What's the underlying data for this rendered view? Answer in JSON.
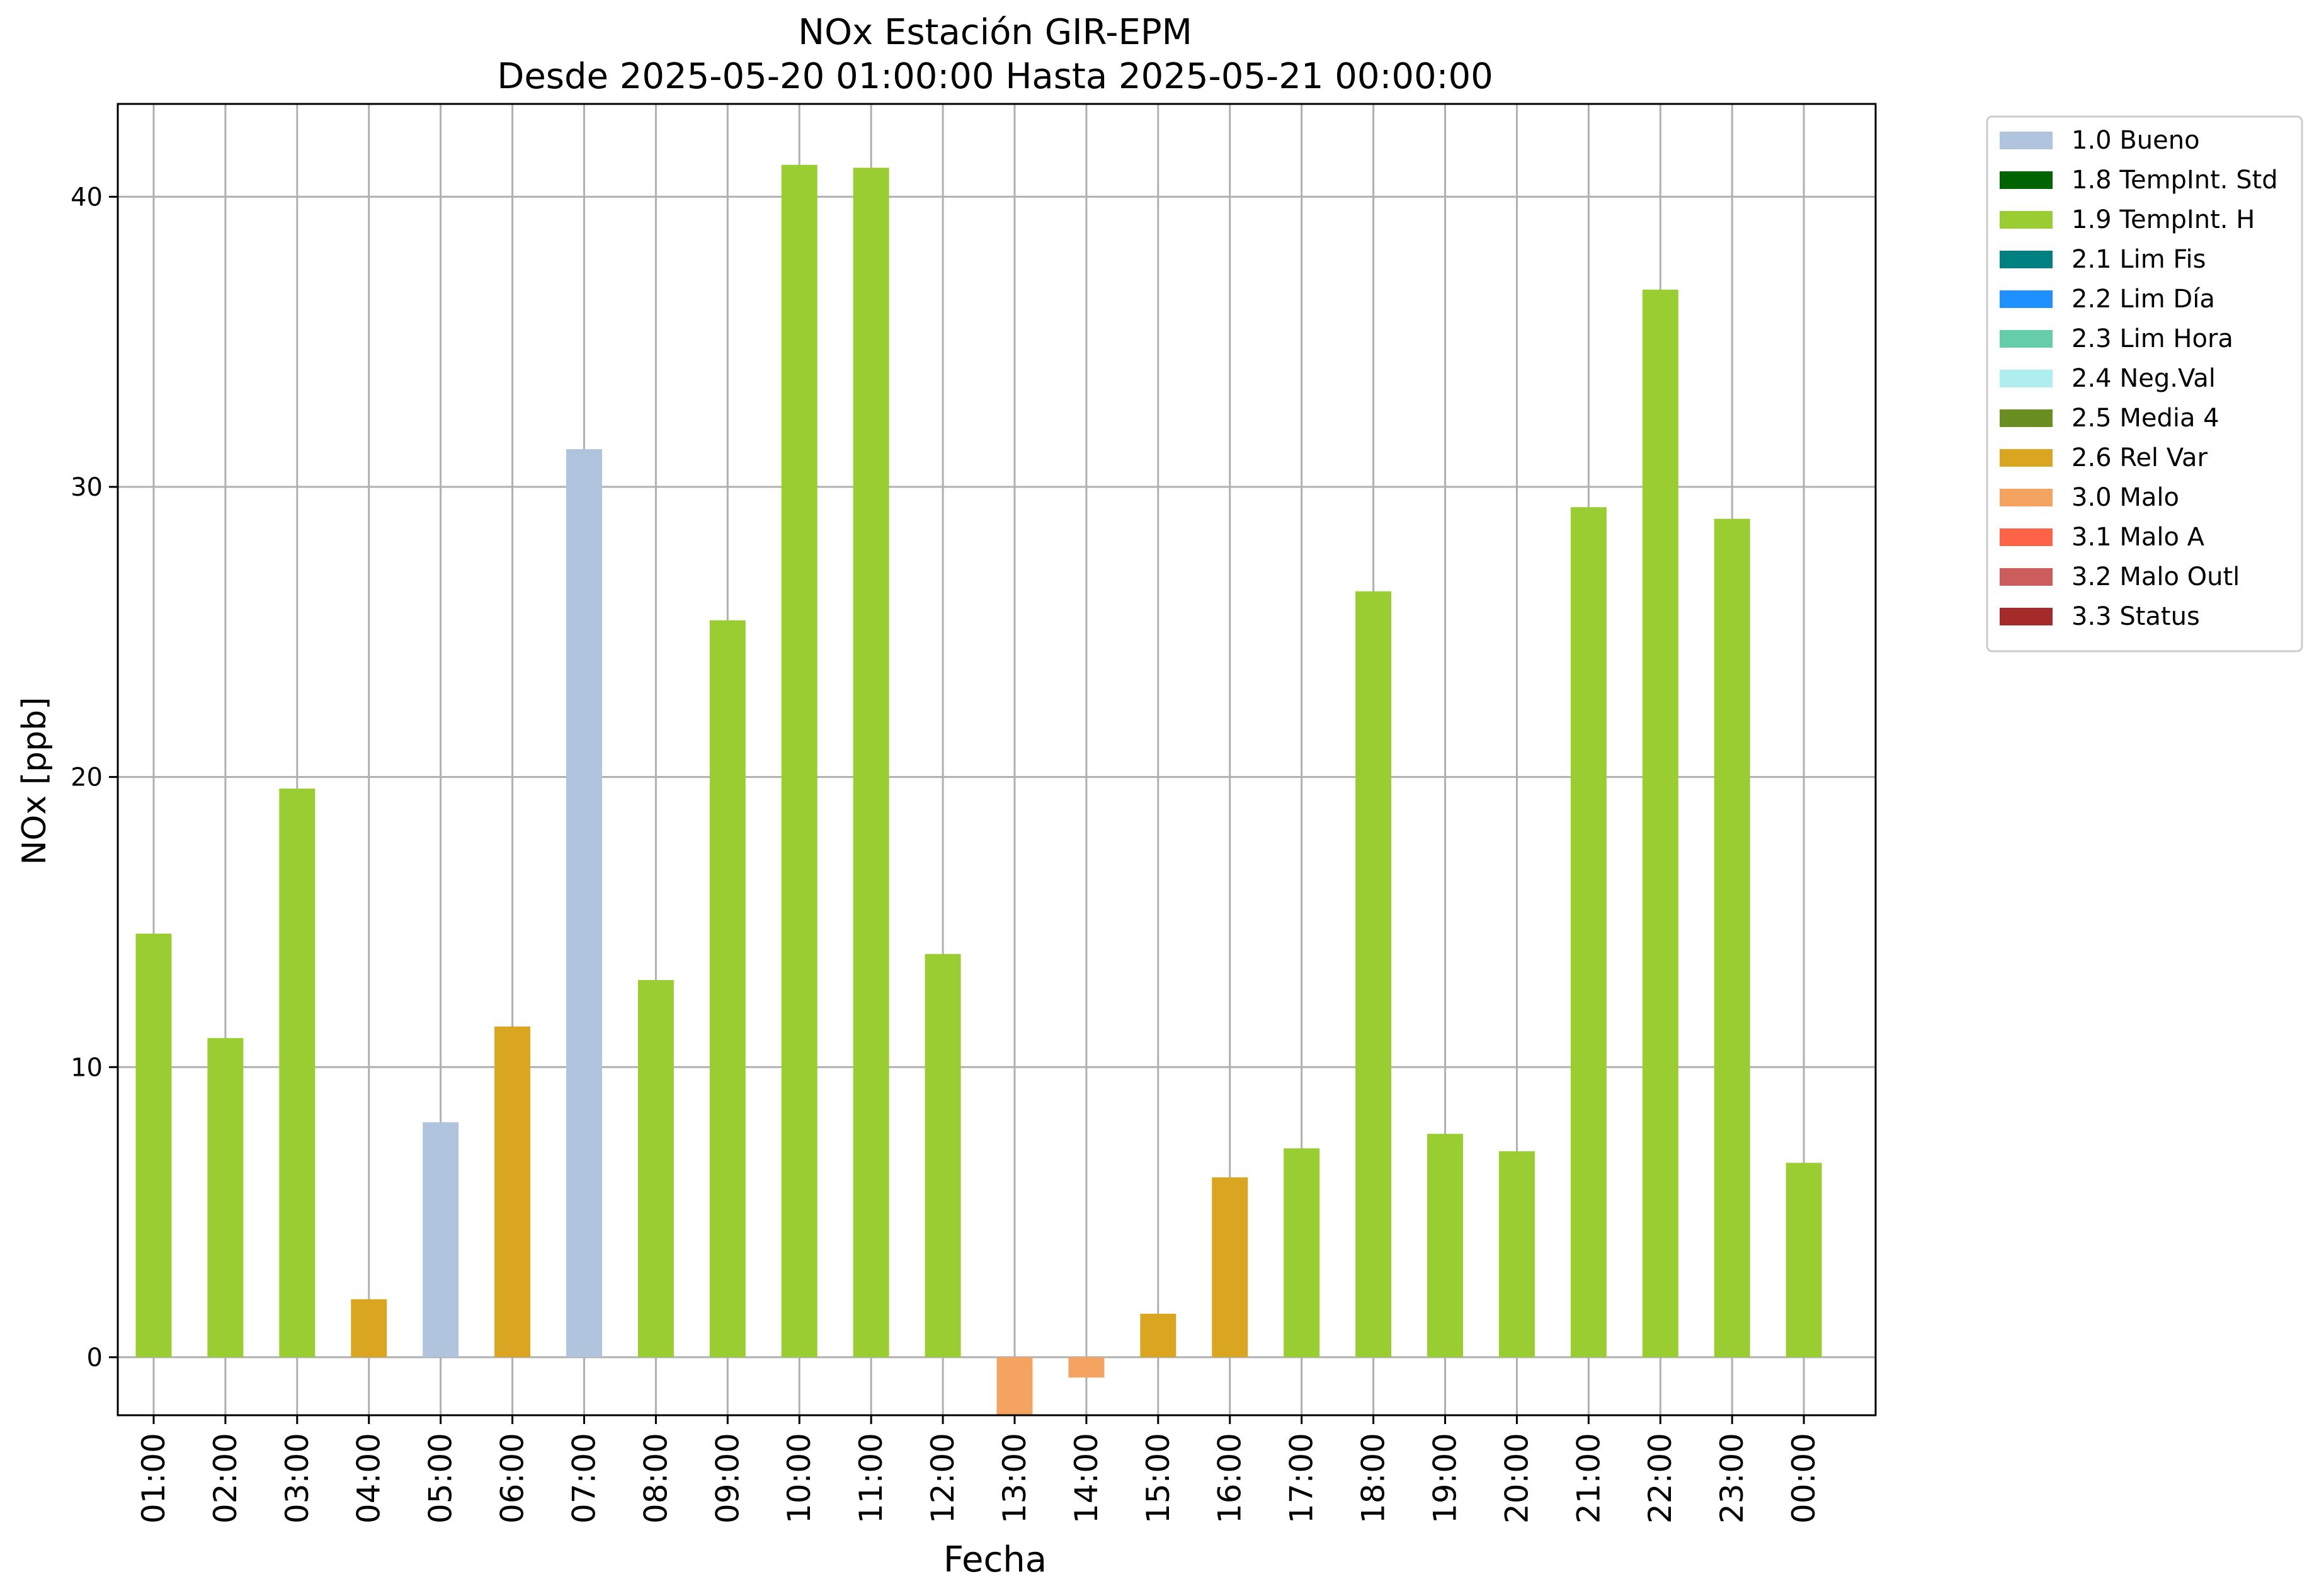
{
  "chart_data": {
    "type": "bar",
    "title": "NOx Estación GIR-EPM",
    "subtitle": "Desde 2025-05-20 01:00:00 Hasta 2025-05-21 00:00:00",
    "xlabel": "Fecha",
    "ylabel": "NOx [ppb]",
    "ylim": [
      -2,
      43.2
    ],
    "yticks": [
      0,
      10,
      20,
      30,
      40
    ],
    "grid": true,
    "legend_position": "outside-top-right",
    "categories": [
      "01:00",
      "02:00",
      "03:00",
      "04:00",
      "05:00",
      "06:00",
      "07:00",
      "08:00",
      "09:00",
      "10:00",
      "11:00",
      "12:00",
      "13:00",
      "14:00",
      "15:00",
      "16:00",
      "17:00",
      "18:00",
      "19:00",
      "20:00",
      "21:00",
      "22:00",
      "23:00",
      "00:00"
    ],
    "values": [
      14.6,
      11.0,
      19.6,
      2.0,
      8.1,
      11.4,
      31.3,
      13.0,
      25.4,
      41.1,
      41.0,
      13.9,
      -2.0,
      -0.7,
      1.5,
      6.2,
      7.2,
      26.4,
      7.7,
      7.1,
      29.3,
      36.8,
      28.9,
      6.7
    ],
    "flags": [
      "1.9 TempInt. H",
      "1.9 TempInt. H",
      "1.9 TempInt. H",
      "2.6 Rel Var",
      "1.0 Bueno",
      "2.6 Rel Var",
      "1.0 Bueno",
      "1.9 TempInt. H",
      "1.9 TempInt. H",
      "1.9 TempInt. H",
      "1.9 TempInt. H",
      "1.9 TempInt. H",
      "3.0 Malo",
      "3.0 Malo",
      "2.6 Rel Var",
      "2.6 Rel Var",
      "1.9 TempInt. H",
      "1.9 TempInt. H",
      "1.9 TempInt. H",
      "1.9 TempInt. H",
      "1.9 TempInt. H",
      "1.9 TempInt. H",
      "1.9 TempInt. H",
      "1.9 TempInt. H"
    ],
    "legend": [
      {
        "label": "1.0 Bueno",
        "color": "#b0c4de"
      },
      {
        "label": "1.8 TempInt. Std",
        "color": "#006400"
      },
      {
        "label": "1.9 TempInt. H",
        "color": "#9acd32"
      },
      {
        "label": "2.1 Lim Fis",
        "color": "#008080"
      },
      {
        "label": "2.2 Lim Día",
        "color": "#1e90ff"
      },
      {
        "label": "2.3 Lim Hora",
        "color": "#66cdaa"
      },
      {
        "label": "2.4 Neg.Val",
        "color": "#afeeee"
      },
      {
        "label": "2.5 Media 4",
        "color": "#6b8e23"
      },
      {
        "label": "2.6 Rel Var",
        "color": "#daa520"
      },
      {
        "label": "3.0 Malo",
        "color": "#f4a460"
      },
      {
        "label": "3.1 Malo A",
        "color": "#ff6347"
      },
      {
        "label": "3.2 Malo Outl",
        "color": "#cd5c5c"
      },
      {
        "label": "3.3 Status",
        "color": "#a52a2a"
      }
    ]
  }
}
